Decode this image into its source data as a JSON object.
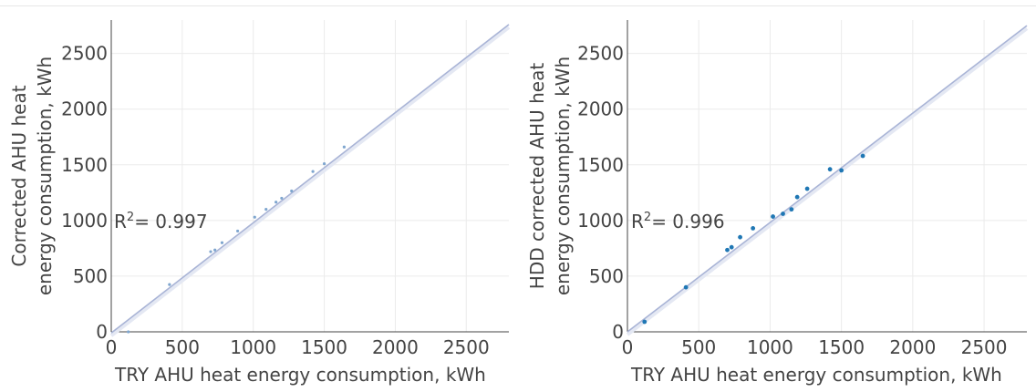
{
  "chart_data": [
    {
      "type": "scatter",
      "ylabel_line1": "Corrected AHU heat",
      "ylabel_line2": "energy consumption, kWh",
      "xlabel": "TRY AHU heat energy consumption, kWh",
      "annotation": {
        "prefix": "R",
        "sup": "2",
        "suffix": "= 0.997"
      },
      "xlim": [
        0,
        2800
      ],
      "ylim": [
        0,
        2800
      ],
      "x_ticks": [
        0,
        500,
        1000,
        1500,
        2000,
        2500
      ],
      "y_ticks": [
        0,
        500,
        1000,
        1500,
        2000,
        2500
      ],
      "grid": true,
      "fit_line": {
        "x": [
          0,
          2800
        ],
        "y": [
          -10,
          2760
        ]
      },
      "points": [
        {
          "x": 120,
          "y": 0
        },
        {
          "x": 410,
          "y": 425
        },
        {
          "x": 700,
          "y": 720
        },
        {
          "x": 730,
          "y": 735
        },
        {
          "x": 780,
          "y": 800
        },
        {
          "x": 890,
          "y": 905
        },
        {
          "x": 1010,
          "y": 1030
        },
        {
          "x": 1090,
          "y": 1100
        },
        {
          "x": 1160,
          "y": 1165
        },
        {
          "x": 1200,
          "y": 1200
        },
        {
          "x": 1270,
          "y": 1265
        },
        {
          "x": 1420,
          "y": 1440
        },
        {
          "x": 1500,
          "y": 1510
        },
        {
          "x": 1640,
          "y": 1660
        }
      ],
      "point_radius": 1.6,
      "point_color": "#7fa6cf"
    },
    {
      "type": "scatter",
      "ylabel_line1": "HDD corrected AHU heat",
      "ylabel_line2": "energy consumption, kWh",
      "xlabel": "TRY AHU heat energy consumption, kWh",
      "annotation": {
        "prefix": "R",
        "sup": "2",
        "suffix": "= 0.996"
      },
      "xlim": [
        0,
        2800
      ],
      "ylim": [
        0,
        2800
      ],
      "x_ticks": [
        0,
        500,
        1000,
        1500,
        2000,
        2500
      ],
      "y_ticks": [
        0,
        500,
        1000,
        1500,
        2000,
        2500
      ],
      "grid": true,
      "fit_line": {
        "x": [
          0,
          2800
        ],
        "y": [
          0,
          2750
        ]
      },
      "points": [
        {
          "x": 120,
          "y": 90
        },
        {
          "x": 410,
          "y": 400
        },
        {
          "x": 700,
          "y": 735
        },
        {
          "x": 730,
          "y": 760
        },
        {
          "x": 790,
          "y": 850
        },
        {
          "x": 880,
          "y": 930
        },
        {
          "x": 1020,
          "y": 1035
        },
        {
          "x": 1090,
          "y": 1060
        },
        {
          "x": 1150,
          "y": 1100
        },
        {
          "x": 1190,
          "y": 1210
        },
        {
          "x": 1260,
          "y": 1285
        },
        {
          "x": 1420,
          "y": 1460
        },
        {
          "x": 1500,
          "y": 1450
        },
        {
          "x": 1650,
          "y": 1580
        }
      ],
      "point_radius": 2.4,
      "point_color": "#1f77b4"
    }
  ],
  "colors": {
    "grid": "#ebebeb",
    "axis": "#444444",
    "text": "#444444",
    "fit_line": "#a9b4d6",
    "fit_band": "#e4e8f3"
  }
}
